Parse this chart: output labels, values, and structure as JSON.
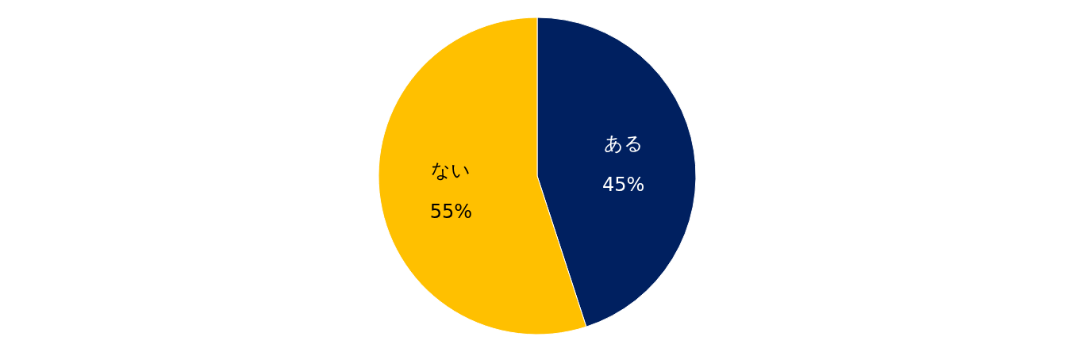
{
  "chart_data": {
    "type": "pie",
    "categories": [
      "ある",
      "ない"
    ],
    "values": [
      45,
      55
    ],
    "value_labels": [
      "45%",
      "55%"
    ],
    "colors": [
      "#002060",
      "#ffc000"
    ],
    "legend": false
  }
}
